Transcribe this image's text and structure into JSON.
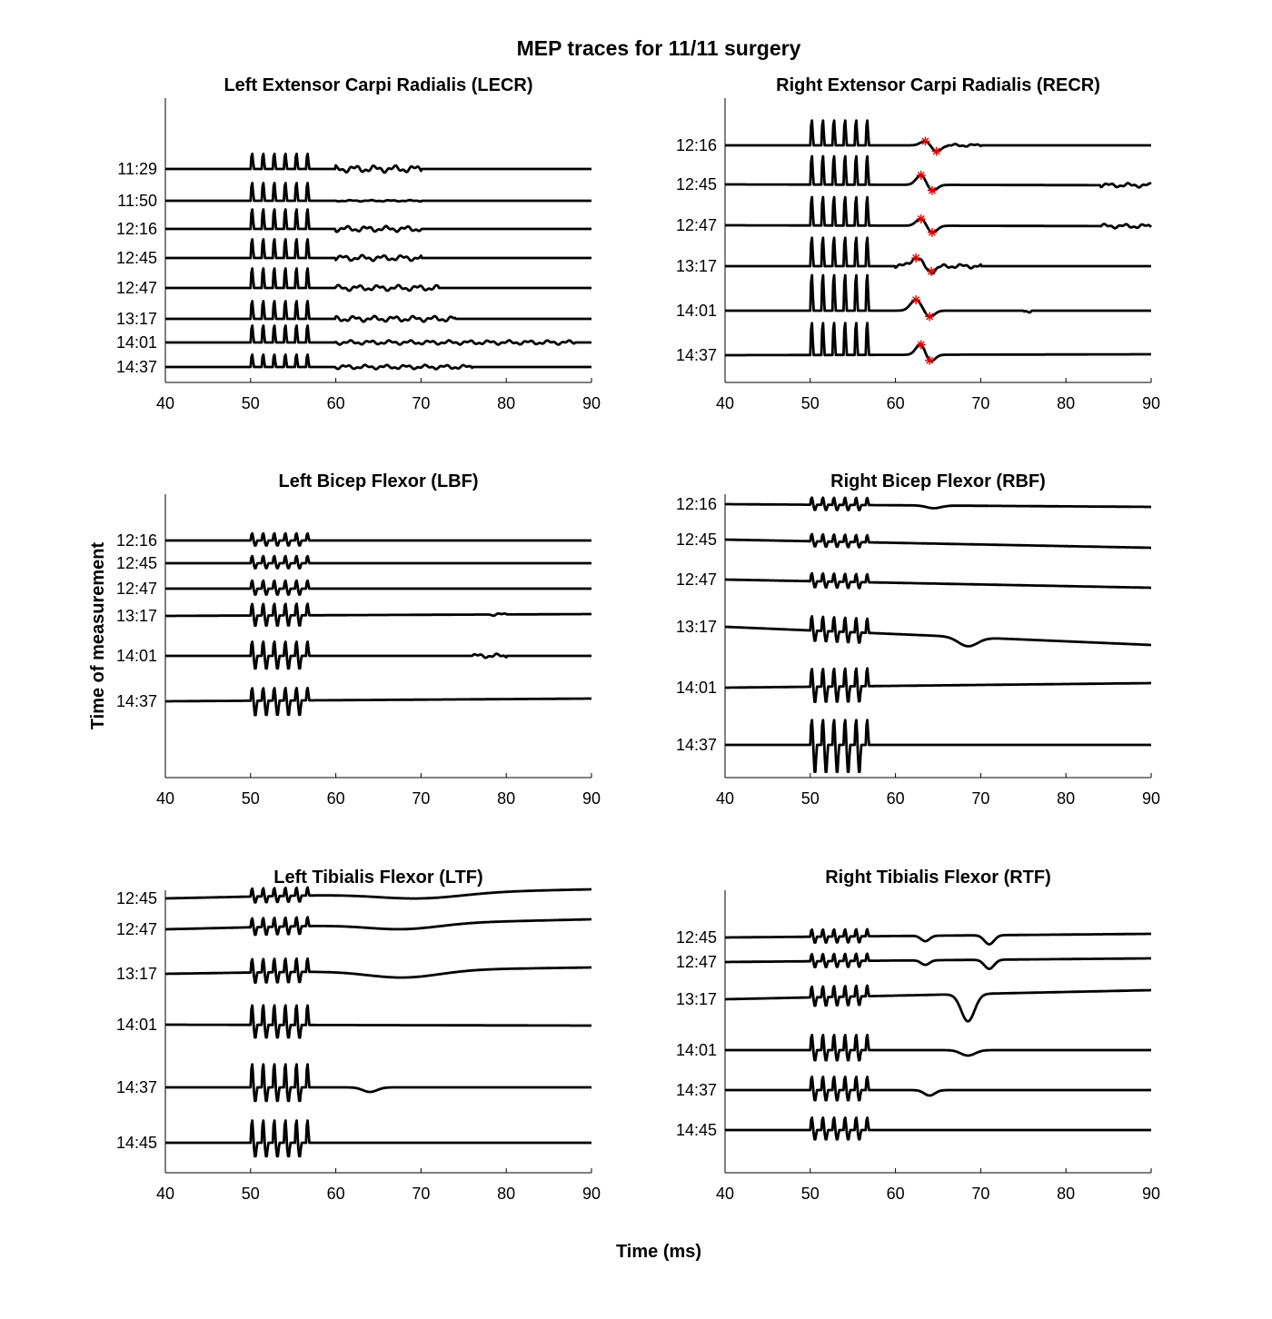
{
  "figure": {
    "title": "MEP traces for 11/11 surgery",
    "xlabel": "Time (ms)",
    "ylabel": "Time of measurement"
  },
  "chart_data": [
    {
      "type": "line",
      "title": "Left Extensor Carpi Radialis (LECR)",
      "xlim": [
        40,
        90
      ],
      "xticks": [
        40,
        50,
        60,
        70,
        80,
        90
      ],
      "grid": false,
      "stim": {
        "start": 50,
        "count": 5,
        "period": 1.3,
        "amps": [
          17,
          20,
          22,
          21,
          22,
          20,
          19,
          14
        ],
        "neg": [
          0,
          0,
          0,
          0,
          0,
          0,
          0,
          0
        ]
      },
      "traces": [
        {
          "label": "11:29",
          "yleft": 186,
          "yright": 186,
          "activity": [
            [
              60,
              70,
              3
            ],
            [
              60,
              70,
              2
            ]
          ],
          "dips": [],
          "markers": []
        },
        {
          "label": "11:50",
          "yleft": 221,
          "yright": 221,
          "activity": [
            [
              60,
              70,
              1
            ]
          ],
          "dips": [],
          "markers": []
        },
        {
          "label": "12:16",
          "yleft": 252,
          "yright": 252,
          "activity": [
            [
              60,
              70,
              4
            ]
          ],
          "dips": [],
          "markers": []
        },
        {
          "label": "12:45",
          "yleft": 284,
          "yright": 284,
          "activity": [
            [
              60,
              70,
              4
            ]
          ],
          "dips": [],
          "markers": []
        },
        {
          "label": "12:47",
          "yleft": 317,
          "yright": 317,
          "activity": [
            [
              60,
              72,
              4
            ]
          ],
          "dips": [],
          "markers": []
        },
        {
          "label": "13:17",
          "yleft": 351,
          "yright": 351,
          "activity": [
            [
              60,
              74,
              4
            ]
          ],
          "dips": [],
          "markers": []
        },
        {
          "label": "14:01",
          "yleft": 377,
          "yright": 377,
          "activity": [
            [
              60,
              88,
              3
            ]
          ],
          "dips": [],
          "markers": []
        },
        {
          "label": "14:37",
          "yleft": 404,
          "yright": 404,
          "activity": [
            [
              60,
              76,
              3
            ]
          ],
          "dips": [],
          "markers": []
        }
      ]
    },
    {
      "type": "line",
      "title": "Right Extensor Carpi Radialis (RECR)",
      "xlim": [
        40,
        90
      ],
      "xticks": [
        40,
        50,
        60,
        70,
        80,
        90
      ],
      "grid": false,
      "stim": {
        "start": 50,
        "count": 5,
        "period": 1.3,
        "amps": [
          28,
          32,
          32,
          32,
          40,
          36
        ],
        "neg": [
          0,
          0,
          0,
          0,
          0,
          0
        ]
      },
      "traces": [
        {
          "label": "12:16",
          "yleft": 160,
          "yright": 160,
          "activity": [
            [
              66,
              70,
              2
            ]
          ],
          "dips": [
            [
              63.5,
              0.8,
              -5
            ],
            [
              64.8,
              0.8,
              7
            ]
          ],
          "markers": [
            63.5,
            64.8
          ]
        },
        {
          "label": "12:45",
          "yleft": 203,
          "yright": 204,
          "activity": [
            [
              84,
              90,
              3
            ]
          ],
          "dips": [
            [
              63.0,
              0.8,
              -11
            ],
            [
              64.3,
              0.8,
              7
            ]
          ],
          "markers": [
            63.0,
            64.3
          ]
        },
        {
          "label": "12:47",
          "yleft": 248,
          "yright": 249,
          "activity": [
            [
              84,
              90,
              3
            ]
          ],
          "dips": [
            [
              63.0,
              0.8,
              -8
            ],
            [
              64.3,
              0.8,
              8
            ]
          ],
          "markers": [
            63.0,
            64.3
          ]
        },
        {
          "label": "13:17",
          "yleft": 293,
          "yright": 293,
          "activity": [
            [
              60,
              70,
              3
            ]
          ],
          "dips": [
            [
              62.4,
              0.9,
              -9
            ],
            [
              64.2,
              0.8,
              6
            ]
          ],
          "markers": [
            62.4,
            64.2
          ]
        },
        {
          "label": "14:01",
          "yleft": 342,
          "yright": 342,
          "activity": [
            [
              75,
              76,
              3
            ]
          ],
          "dips": [
            [
              62.4,
              0.9,
              -12
            ],
            [
              64.0,
              0.8,
              7
            ]
          ],
          "markers": [
            62.4,
            64.0
          ]
        },
        {
          "label": "14:37",
          "yleft": 391,
          "yright": 390,
          "activity": [],
          "dips": [
            [
              63.0,
              0.8,
              -13
            ],
            [
              64.0,
              0.8,
              9
            ]
          ],
          "markers": [
            63.0,
            64.0
          ]
        }
      ]
    },
    {
      "type": "line",
      "title": "Left Bicep Flexor (LBF)",
      "xlim": [
        40,
        90
      ],
      "xticks": [
        40,
        50,
        60,
        70,
        80,
        90
      ],
      "grid": false,
      "stim": {
        "start": 50,
        "count": 5,
        "period": 1.3,
        "amps": [
          8,
          8,
          9,
          13,
          16,
          14
        ],
        "neg": [
          6,
          6,
          7,
          12,
          15,
          17
        ]
      },
      "traces": [
        {
          "label": "12:16",
          "yleft": 595,
          "yright": 595,
          "activity": [],
          "dips": [],
          "markers": []
        },
        {
          "label": "12:45",
          "yleft": 620,
          "yright": 620,
          "activity": [],
          "dips": [],
          "markers": []
        },
        {
          "label": "12:47",
          "yleft": 648,
          "yright": 648,
          "activity": [],
          "dips": [],
          "markers": []
        },
        {
          "label": "13:17",
          "yleft": 678,
          "yright": 676,
          "activity": [
            [
              78,
              80,
              2
            ]
          ],
          "dips": [],
          "markers": []
        },
        {
          "label": "14:01",
          "yleft": 722,
          "yright": 722,
          "activity": [
            [
              76,
              80,
              3
            ]
          ],
          "dips": [],
          "markers": []
        },
        {
          "label": "14:37",
          "yleft": 772,
          "yright": 769,
          "activity": [],
          "dips": [],
          "markers": []
        }
      ]
    },
    {
      "type": "line",
      "title": "Right Bicep Flexor (RBF)",
      "xlim": [
        40,
        90
      ],
      "xticks": [
        40,
        50,
        60,
        70,
        80,
        90
      ],
      "grid": false,
      "stim": {
        "start": 50,
        "count": 5,
        "period": 1.3,
        "amps": [
          8,
          8,
          9,
          16,
          20,
          28
        ],
        "neg": [
          6,
          6,
          7,
          12,
          18,
          32
        ]
      },
      "traces": [
        {
          "label": "12:16",
          "yleft": 555,
          "yright": 558,
          "activity": [],
          "dips": [
            [
              64.5,
              1.2,
              3
            ]
          ],
          "markers": []
        },
        {
          "label": "12:45",
          "yleft": 594,
          "yright": 603,
          "activity": [],
          "dips": [],
          "markers": []
        },
        {
          "label": "12:47",
          "yleft": 638,
          "yright": 647,
          "activity": [],
          "dips": [],
          "markers": []
        },
        {
          "label": "13:17",
          "yleft": 690,
          "yright": 710,
          "activity": [],
          "dips": [
            [
              68.5,
              1.6,
              10
            ]
          ],
          "markers": []
        },
        {
          "label": "14:01",
          "yleft": 757,
          "yright": 752,
          "activity": [],
          "dips": [],
          "markers": []
        },
        {
          "label": "14:37",
          "yleft": 820,
          "yright": 820,
          "activity": [],
          "dips": [],
          "markers": []
        }
      ]
    },
    {
      "type": "line",
      "title": "Left Tibialis Flexor (LTF)",
      "xlim": [
        40,
        90
      ],
      "xticks": [
        40,
        50,
        60,
        70,
        80,
        90
      ],
      "grid": false,
      "stim": {
        "start": 50,
        "count": 5,
        "period": 1.3,
        "amps": [
          9,
          10,
          15,
          22,
          26,
          25
        ],
        "neg": [
          7,
          9,
          12,
          15,
          16,
          16
        ]
      },
      "traces": [
        {
          "label": "12:45",
          "yleft": 989,
          "yright": 979,
          "activity": [],
          "dips": [
            [
              70,
              7,
              6
            ]
          ],
          "markers": []
        },
        {
          "label": "12:47",
          "yleft": 1023,
          "yright": 1012,
          "activity": [],
          "dips": [
            [
              68,
              6,
              6
            ]
          ],
          "markers": []
        },
        {
          "label": "13:17",
          "yleft": 1072,
          "yright": 1065,
          "activity": [],
          "dips": [
            [
              68,
              6,
              8
            ]
          ],
          "markers": []
        },
        {
          "label": "14:01",
          "yleft": 1128,
          "yright": 1129,
          "activity": [],
          "dips": [],
          "markers": []
        },
        {
          "label": "14:37",
          "yleft": 1197,
          "yright": 1197,
          "activity": [],
          "dips": [
            [
              64,
              1.2,
              5
            ]
          ],
          "markers": []
        },
        {
          "label": "14:45",
          "yleft": 1258,
          "yright": 1258,
          "activity": [],
          "dips": [],
          "markers": []
        }
      ]
    },
    {
      "type": "line",
      "title": "Right Tibialis Flexor (RTF)",
      "xlim": [
        40,
        90
      ],
      "xticks": [
        40,
        50,
        60,
        70,
        80,
        90
      ],
      "grid": false,
      "stim": {
        "start": 50,
        "count": 5,
        "period": 1.3,
        "amps": [
          8,
          8,
          12,
          17,
          15,
          14
        ],
        "neg": [
          7,
          7,
          10,
          12,
          12,
          11
        ]
      },
      "traces": [
        {
          "label": "12:45",
          "yleft": 1032,
          "yright": 1028,
          "activity": [],
          "dips": [
            [
              63.5,
              0.7,
              6
            ],
            [
              71.0,
              0.8,
              10
            ]
          ],
          "markers": []
        },
        {
          "label": "12:47",
          "yleft": 1059,
          "yright": 1055,
          "activity": [],
          "dips": [
            [
              63.5,
              0.7,
              5
            ],
            [
              71.0,
              0.8,
              10
            ]
          ],
          "markers": []
        },
        {
          "label": "13:17",
          "yleft": 1100,
          "yright": 1090,
          "activity": [],
          "dips": [
            [
              68.5,
              1.1,
              30
            ]
          ],
          "markers": []
        },
        {
          "label": "14:01",
          "yleft": 1156,
          "yright": 1156,
          "activity": [],
          "dips": [
            [
              68.5,
              1.2,
              6
            ]
          ],
          "markers": []
        },
        {
          "label": "14:37",
          "yleft": 1200,
          "yright": 1200,
          "activity": [],
          "dips": [
            [
              64,
              0.9,
              6
            ]
          ],
          "markers": []
        },
        {
          "label": "14:45",
          "yleft": 1244,
          "yright": 1244,
          "activity": [],
          "dips": [],
          "markers": []
        }
      ]
    }
  ],
  "colors": {
    "trace": "#000000",
    "marker": "#e00000",
    "axis": "#000000"
  }
}
